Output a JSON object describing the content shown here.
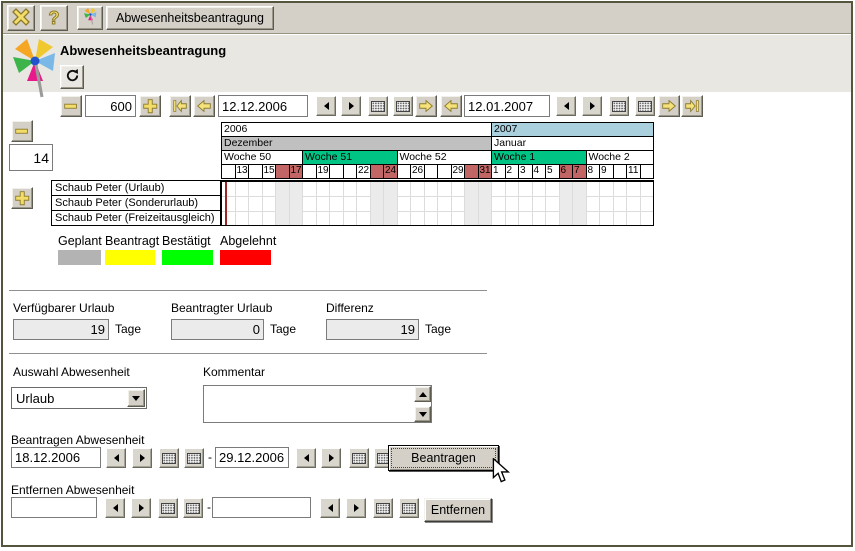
{
  "toolbar": {
    "tab_label": "Abwesenheitsbeantragung",
    "close_icon": "x-icon",
    "help_icon": "question-icon"
  },
  "header": {
    "title": "Abwesenheitsbeantragung"
  },
  "zoombar": {
    "zoom_value": "600",
    "date_from": "12.12.2006",
    "date_to": "12.01.2007"
  },
  "sidebar_controls": {
    "row_count": "14"
  },
  "calendar": {
    "years": [
      {
        "label": "2006",
        "span": 20,
        "color": "#ffffff"
      },
      {
        "label": "2007",
        "span": 12,
        "color": "#aacfdd"
      }
    ],
    "months": [
      {
        "label": "Dezember",
        "span": 20,
        "color": "#c0c0c0"
      },
      {
        "label": "Januar",
        "span": 12,
        "color": "#ffffff"
      }
    ],
    "weeks": [
      {
        "label": "Woche 50",
        "span": 6,
        "color": "#ffffff"
      },
      {
        "label": "Woche 51",
        "span": 7,
        "color": "#00c484"
      },
      {
        "label": "Woche 52",
        "span": 7,
        "color": "#ffffff"
      },
      {
        "label": "Woche 1",
        "span": 7,
        "color": "#00c484"
      },
      {
        "label": "Woche 2",
        "span": 5,
        "color": "#ffffff"
      }
    ],
    "days": [
      {
        "label": "",
        "weekend": false
      },
      {
        "label": "13",
        "weekend": false
      },
      {
        "label": "",
        "weekend": false
      },
      {
        "label": "15",
        "weekend": false
      },
      {
        "label": "",
        "weekend": true
      },
      {
        "label": "17",
        "weekend": true
      },
      {
        "label": "",
        "weekend": false
      },
      {
        "label": "19",
        "weekend": false
      },
      {
        "label": "",
        "weekend": false
      },
      {
        "label": "",
        "weekend": false
      },
      {
        "label": "22",
        "weekend": false
      },
      {
        "label": "",
        "weekend": true
      },
      {
        "label": "24",
        "weekend": true
      },
      {
        "label": "",
        "weekend": false
      },
      {
        "label": "26",
        "weekend": false
      },
      {
        "label": "",
        "weekend": false
      },
      {
        "label": "",
        "weekend": false
      },
      {
        "label": "29",
        "weekend": false
      },
      {
        "label": "",
        "weekend": true
      },
      {
        "label": "31",
        "weekend": true
      },
      {
        "label": "1",
        "weekend": false
      },
      {
        "label": "2",
        "weekend": false
      },
      {
        "label": "3",
        "weekend": false
      },
      {
        "label": "4",
        "weekend": false
      },
      {
        "label": "5",
        "weekend": false
      },
      {
        "label": "6",
        "weekend": true
      },
      {
        "label": "7",
        "weekend": true
      },
      {
        "label": "8",
        "weekend": false
      },
      {
        "label": "9",
        "weekend": false
      },
      {
        "label": "",
        "weekend": false
      },
      {
        "label": "11",
        "weekend": false
      },
      {
        "label": "",
        "weekend": false
      }
    ],
    "rows": [
      "Schaub Peter (Urlaub)",
      "Schaub Peter (Sonderurlaub)",
      "Schaub Peter (Freizeitausgleich)"
    ],
    "weekend_header_color": "#c16565",
    "weekend_body_color": "#ebebeb",
    "today_line_color": "#a02424"
  },
  "legend": {
    "items": [
      {
        "label": "Geplant",
        "color": "#b3b3b3"
      },
      {
        "label": "Beantragt",
        "color": "#ffff00"
      },
      {
        "label": "Bestätigt",
        "color": "#00ff00"
      },
      {
        "label": "Abgelehnt",
        "color": "#ff0000"
      }
    ]
  },
  "summary": {
    "fields": [
      {
        "label": "Verfügbarer Urlaub",
        "value": "19",
        "unit": "Tage"
      },
      {
        "label": "Beantragter Urlaub",
        "value": "0",
        "unit": "Tage"
      },
      {
        "label": "Differenz",
        "value": "19",
        "unit": "Tage"
      }
    ]
  },
  "absence_form": {
    "selector_label": "Auswahl Abwesenheit",
    "selected": "Urlaub",
    "comment_label": "Kommentar",
    "comment_value": ""
  },
  "request": {
    "label": "Beantragen Abwesenheit",
    "date_from": "18.12.2006",
    "separator": "-",
    "date_to": "29.12.2006",
    "button_label": "Beantragen"
  },
  "remove": {
    "label": "Entfernen Abwesenheit",
    "date_from": "",
    "separator": "-",
    "date_to": "",
    "button_label": "Entfernen"
  }
}
